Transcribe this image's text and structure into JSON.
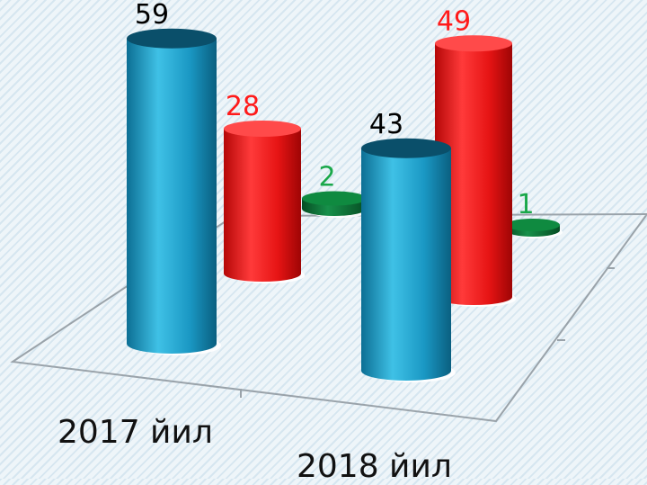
{
  "chart_data": {
    "type": "bar",
    "title": "",
    "xlabel": "",
    "ylabel": "",
    "categories": [
      "2017 йил",
      "2018 йил"
    ],
    "series": [
      {
        "values": [
          59,
          43
        ],
        "color": "#1e9ec8",
        "label_color": "#000000"
      },
      {
        "values": [
          28,
          49
        ],
        "color": "#e01010",
        "label_color": "#ff1a1a"
      },
      {
        "values": [
          2,
          1
        ],
        "color": "#0e7a3a",
        "label_color": "#1aa84a"
      }
    ],
    "ylim": [
      0,
      60
    ],
    "style": "3d-cylinder",
    "grid": false,
    "legend": "none"
  }
}
